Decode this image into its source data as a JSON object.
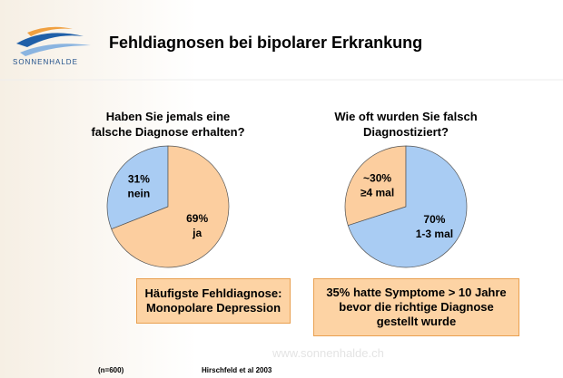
{
  "header": {
    "logo": "SONNENHALDE",
    "title": "Fehldiagnosen bei bipolarer Erkrankung"
  },
  "chart_data": [
    {
      "type": "pie",
      "title": "Haben Sie jemals eine\nfalsche Diagnose erhalten?",
      "categories": [
        "nein",
        "ja"
      ],
      "values": [
        31,
        69
      ],
      "value_labels": [
        "31%",
        "69%"
      ],
      "colors": [
        "#a9ccf3",
        "#fcce9f"
      ]
    },
    {
      "type": "pie",
      "title": "Wie oft wurden Sie falsch\nDiagnostiziert?",
      "categories": [
        "≥4 mal",
        "1-3 mal"
      ],
      "values": [
        30,
        70
      ],
      "value_labels": [
        "~30%",
        "70%"
      ],
      "colors": [
        "#fcce9f",
        "#a9ccf3"
      ]
    }
  ],
  "boxes": [
    "Häufigste Fehldiagnose:\nMonopolare Depression",
    "35% hatte Symptome > 10 Jahre\nbevor die richtige Diagnose\ngestellt wurde"
  ],
  "footer": {
    "sample": "(n=600)",
    "source": "Hirschfeld et al 2003",
    "website": "www.sonnenhalde.ch"
  }
}
